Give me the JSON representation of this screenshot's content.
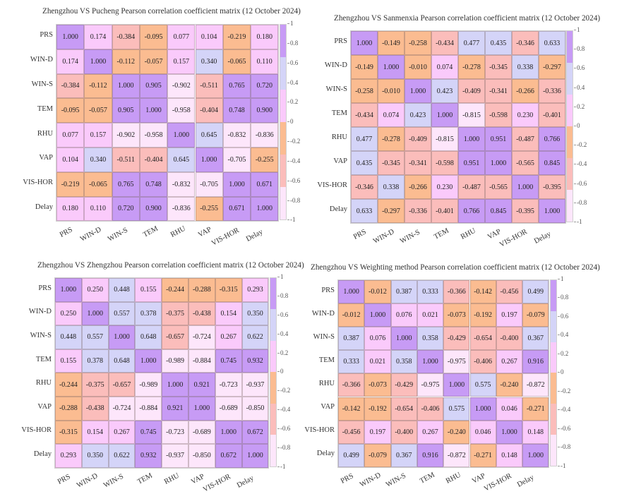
{
  "chart_data": [
    {
      "type": "heatmap",
      "title": "Zhengzhou VS Pucheng Pearson correlation coefficient matrix (12 October 2024)",
      "rows": [
        "PRS",
        "WIN-D",
        "WIN-S",
        "TEM",
        "RHU",
        "VAP",
        "VIS-HOR",
        "Delay"
      ],
      "cols": [
        "PRS",
        "WIN-D",
        "WIN-S",
        "TEM",
        "RHU",
        "VAP",
        "VIS-HOR",
        "Delay"
      ],
      "values": [
        [
          "1.000",
          "0.174",
          "-0.384",
          "-0.095",
          "0.077",
          "0.104",
          "-0.219",
          "0.180"
        ],
        [
          "0.174",
          "1.000",
          "-0.112",
          "-0.057",
          "0.157",
          "0.340",
          "-0.065",
          "0.110"
        ],
        [
          "-0.384",
          "-0.112",
          "1.000",
          "0.905",
          "-0.902",
          "-0.511",
          "0.765",
          "0.720"
        ],
        [
          "-0.095",
          "-0.057",
          "0.905",
          "1.000",
          "-0.958",
          "-0.404",
          "0.748",
          "0.900"
        ],
        [
          "0.077",
          "0.157",
          "-0.902",
          "-0.958",
          "1.000",
          "0.645",
          "-0.832",
          "-0.836"
        ],
        [
          "0.104",
          "0.340",
          "-0.511",
          "-0.404",
          "0.645",
          "1.000",
          "-0.705",
          "-0.255"
        ],
        [
          "-0.219",
          "-0.065",
          "0.765",
          "0.748",
          "-0.832",
          "-0.705",
          "1.000",
          "0.671"
        ],
        [
          "0.180",
          "0.110",
          "0.720",
          "0.900",
          "-0.836",
          "-0.255",
          "0.671",
          "1.000"
        ]
      ],
      "colorbar_ticks": [
        "1",
        "0.8",
        "0.6",
        "0.4",
        "0.2",
        "0",
        "-0.2",
        "-0.4",
        "-0.6",
        "-0.8",
        "-1"
      ],
      "range": [
        -1,
        1
      ]
    },
    {
      "type": "heatmap",
      "title": "Zhengzhou VS Sanmenxia Pearson correlation coefficient matrix (12 October 2024)",
      "rows": [
        "PRS",
        "WIN-D",
        "WIN-S",
        "TEM",
        "RHU",
        "VAP",
        "VIS-HOR",
        "Delay"
      ],
      "cols": [
        "PRS",
        "WIN-D",
        "WIN-S",
        "TEM",
        "RHU",
        "VAP",
        "VIS-HOR",
        "Delay"
      ],
      "values": [
        [
          "1.000",
          "-0.149",
          "-0.258",
          "-0.434",
          "0.477",
          "0.435",
          "-0.346",
          "0.633"
        ],
        [
          "-0.149",
          "1.000",
          "-0.010",
          "0.074",
          "-0.278",
          "-0.345",
          "0.338",
          "-0.297"
        ],
        [
          "-0.258",
          "-0.010",
          "1.000",
          "0.423",
          "-0.409",
          "-0.341",
          "-0.266",
          "-0.336"
        ],
        [
          "-0.434",
          "0.074",
          "0.423",
          "1.000",
          "-0.815",
          "-0.598",
          "0.230",
          "-0.401"
        ],
        [
          "0.477",
          "-0.278",
          "-0.409",
          "-0.815",
          "1.000",
          "0.951",
          "-0.487",
          "0.766"
        ],
        [
          "0.435",
          "-0.345",
          "-0.341",
          "-0.598",
          "0.951",
          "1.000",
          "-0.565",
          "0.845"
        ],
        [
          "-0.346",
          "0.338",
          "-0.266",
          "0.230",
          "-0.487",
          "-0.565",
          "1.000",
          "-0.395"
        ],
        [
          "0.633",
          "-0.297",
          "-0.336",
          "-0.401",
          "0.766",
          "0.845",
          "-0.395",
          "1.000"
        ]
      ],
      "colorbar_ticks": [
        "1",
        "0.8",
        "0.6",
        "0.4",
        "0.2",
        "0",
        "-0.2",
        "-0.4",
        "-0.6",
        "-0.8",
        "-1"
      ],
      "range": [
        -1,
        1
      ]
    },
    {
      "type": "heatmap",
      "title": "Zhengzhou VS Zhengzhou Pearson correlation coefficient matrix (12 October 2024)",
      "rows": [
        "PRS",
        "WIN-D",
        "WIN-S",
        "TEM",
        "RHU",
        "VAP",
        "VIS-HOR",
        "Delay"
      ],
      "cols": [
        "PRS",
        "WIN-D",
        "WIN-S",
        "TEM",
        "RHU",
        "VAP",
        "VIS-HOR",
        "Delay"
      ],
      "values": [
        [
          "1.000",
          "0.250",
          "0.448",
          "0.155",
          "-0.244",
          "-0.288",
          "-0.315",
          "0.293"
        ],
        [
          "0.250",
          "1.000",
          "0.557",
          "0.378",
          "-0.375",
          "-0.438",
          "0.154",
          "0.350"
        ],
        [
          "0.448",
          "0.557",
          "1.000",
          "0.648",
          "-0.657",
          "-0.724",
          "0.267",
          "0.622"
        ],
        [
          "0.155",
          "0.378",
          "0.648",
          "1.000",
          "-0.989",
          "-0.884",
          "0.745",
          "0.932"
        ],
        [
          "-0.244",
          "-0.375",
          "-0.657",
          "-0.989",
          "1.000",
          "0.921",
          "-0.723",
          "-0.937"
        ],
        [
          "-0.288",
          "-0.438",
          "-0.724",
          "-0.884",
          "0.921",
          "1.000",
          "-0.689",
          "-0.850"
        ],
        [
          "-0.315",
          "0.154",
          "0.267",
          "0.745",
          "-0.723",
          "-0.689",
          "1.000",
          "0.672"
        ],
        [
          "0.293",
          "0.350",
          "0.622",
          "0.932",
          "-0.937",
          "-0.850",
          "0.672",
          "1.000"
        ]
      ],
      "colorbar_ticks": [
        "1",
        "0.8",
        "0.6",
        "0.4",
        "0.2",
        "0",
        "-0.2",
        "-0.4",
        "-0.6",
        "-0.8",
        "-1"
      ],
      "range": [
        -1,
        1
      ]
    },
    {
      "type": "heatmap",
      "title": "Zhengzhou VS Weighting method Pearson correlation coefficient matrix (12 October 2024)",
      "rows": [
        "PRS",
        "WIN-D",
        "WIN-S",
        "TEM",
        "RHU",
        "VAP",
        "VIS-HOR",
        "Delay"
      ],
      "cols": [
        "PRS",
        "WIN-D",
        "WIN-S",
        "TEM",
        "RHU",
        "VAP",
        "VIS-HOR",
        "Delay"
      ],
      "values": [
        [
          "1.000",
          "-0.012",
          "0.387",
          "0.333",
          "-0.366",
          "-0.142",
          "-0.456",
          "0.499"
        ],
        [
          "-0.012",
          "1.000",
          "0.076",
          "0.021",
          "-0.073",
          "-0.192",
          "0.197",
          "-0.079"
        ],
        [
          "0.387",
          "0.076",
          "1.000",
          "0.358",
          "-0.429",
          "-0.654",
          "-0.400",
          "0.367"
        ],
        [
          "0.333",
          "0.021",
          "0.358",
          "1.000",
          "-0.975",
          "-0.406",
          "0.267",
          "0.916"
        ],
        [
          "-0.366",
          "-0.073",
          "-0.429",
          "-0.975",
          "1.000",
          "0.575",
          "-0.240",
          "-0.872"
        ],
        [
          "-0.142",
          "-0.192",
          "-0.654",
          "-0.406",
          "0.575",
          "1.000",
          "0.046",
          "-0.271"
        ],
        [
          "-0.456",
          "0.197",
          "-0.400",
          "0.267",
          "-0.240",
          "0.046",
          "1.000",
          "0.148"
        ],
        [
          "0.499",
          "-0.079",
          "0.367",
          "0.916",
          "-0.872",
          "-0.271",
          "0.148",
          "1.000"
        ]
      ],
      "colorbar_ticks": [
        "1",
        "0.8",
        "0.6",
        "0.4",
        "0.2",
        "0",
        "-0.2",
        "-0.4",
        "-0.6",
        "-0.8",
        "-1"
      ],
      "range": [
        -1,
        1
      ]
    }
  ],
  "colors": {
    "band_0.667_1": "#c79bf5",
    "band_0.333_0.667": "#d4d4f8",
    "band_0_0.333": "#facafb",
    "band_-0.333_0": "#fbbc91",
    "band_-0.667_-0.333": "#fbbdbb",
    "band_-1_-0.667": "#fde6fb"
  }
}
